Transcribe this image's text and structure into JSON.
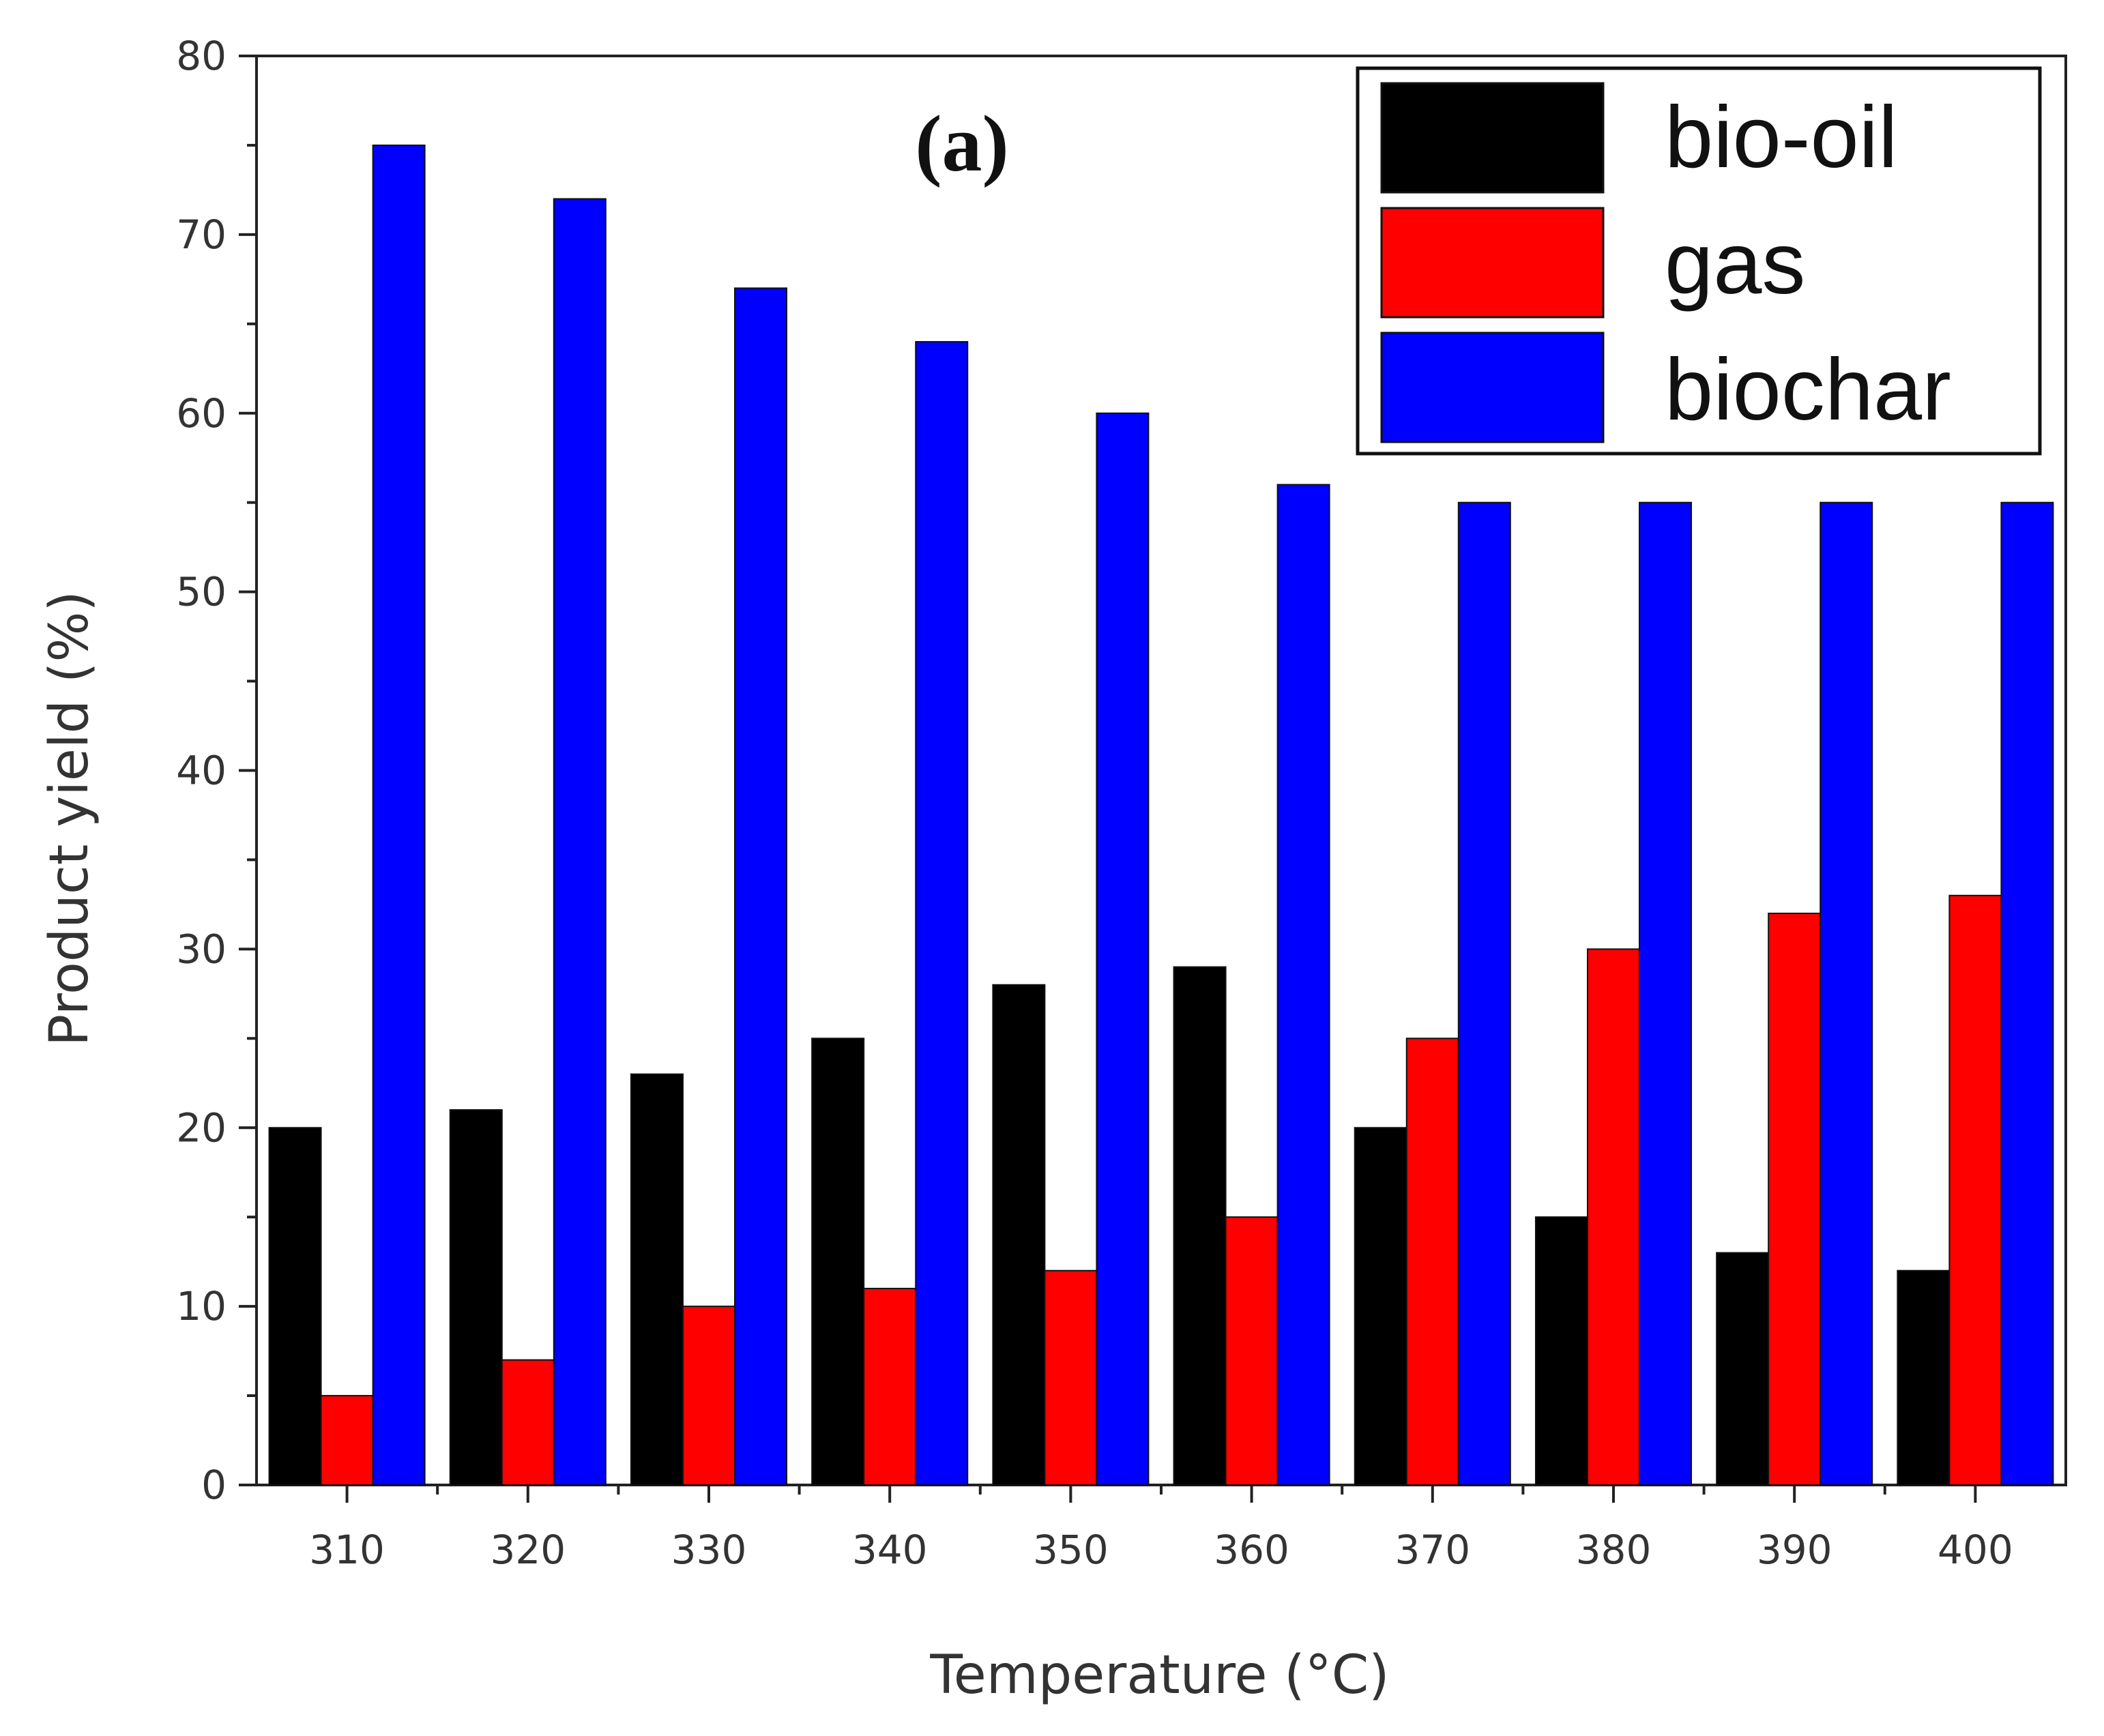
{
  "chart_data": {
    "type": "bar",
    "panel_label": "(a)",
    "xlabel": "Temperature (°C)",
    "ylabel": "Product yield (%)",
    "ylim": [
      0,
      80
    ],
    "y_ticks": [
      0,
      10,
      20,
      30,
      40,
      50,
      60,
      70,
      80
    ],
    "categories": [
      "310",
      "320",
      "330",
      "340",
      "350",
      "360",
      "370",
      "380",
      "390",
      "400"
    ],
    "legend_position": "top-right",
    "series": [
      {
        "name": "bio-oil",
        "color": "#000000",
        "values": [
          20,
          21,
          23,
          25,
          28,
          29,
          20,
          15,
          13,
          12
        ]
      },
      {
        "name": "gas",
        "color": "#ff0000",
        "values": [
          5,
          7,
          10,
          11,
          12,
          15,
          25,
          30,
          32,
          33
        ]
      },
      {
        "name": "biochar",
        "color": "#0000ff",
        "values": [
          75,
          72,
          67,
          64,
          60,
          56,
          55,
          55,
          55,
          55
        ]
      }
    ]
  }
}
